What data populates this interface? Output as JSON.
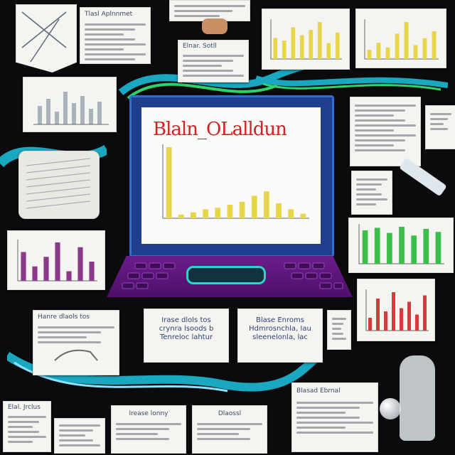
{
  "screen": {
    "title": "Blaln_OLalldun"
  },
  "captions": {
    "top_left_card": "Tlasl Aplnnmet",
    "top_center_card": "Elnar. Sotll",
    "mid_left_bottom_card": "Hanre dlaols tos",
    "mid_center_card": "Irease lonny",
    "bottom_left_card": "Elal. Jrclus",
    "bottom_center_card": "Dlaossl",
    "bottom_right_card": "Blasad Ebrnal"
  },
  "panel_text": {
    "left_panel": [
      "Irase dlols tos",
      "crynra lsoods b",
      "Tenreloc lahtur"
    ],
    "right_panel": [
      "Blase Enroms",
      "Hdmrosnchla, Iau",
      "sleenelonla, lac"
    ]
  },
  "colors": {
    "background": "#0b0b0d",
    "screen_title": "#d32020",
    "laptop_frame": "#2c6fd6",
    "keyboard": "#6b1d8a",
    "trackpad": "#2fd3c8",
    "bar_yellow": "#e8d64a",
    "bar_green": "#3bbf4a",
    "bar_red": "#d33a3a",
    "bar_purple": "#8a3a8a"
  },
  "chart_data": [
    {
      "type": "bar",
      "title": "",
      "values": [
        95,
        5,
        8,
        12,
        14,
        18,
        22,
        30,
        36,
        20,
        12,
        6
      ]
    },
    {
      "type": "bar",
      "title": "",
      "values": [
        40,
        35,
        60,
        45,
        55,
        70,
        30,
        50
      ]
    },
    {
      "type": "bar",
      "title": "",
      "values": [
        20,
        35,
        25,
        55,
        80,
        30,
        45,
        60
      ]
    },
    {
      "type": "bar",
      "title": "",
      "values": [
        30,
        15,
        25,
        40,
        10,
        35,
        20
      ]
    },
    {
      "type": "bar",
      "title": "",
      "values": [
        65,
        70,
        60,
        72,
        55,
        68,
        62
      ]
    },
    {
      "type": "bar",
      "title": "",
      "values": [
        20,
        50,
        30,
        60,
        35,
        45,
        25,
        55
      ]
    }
  ]
}
